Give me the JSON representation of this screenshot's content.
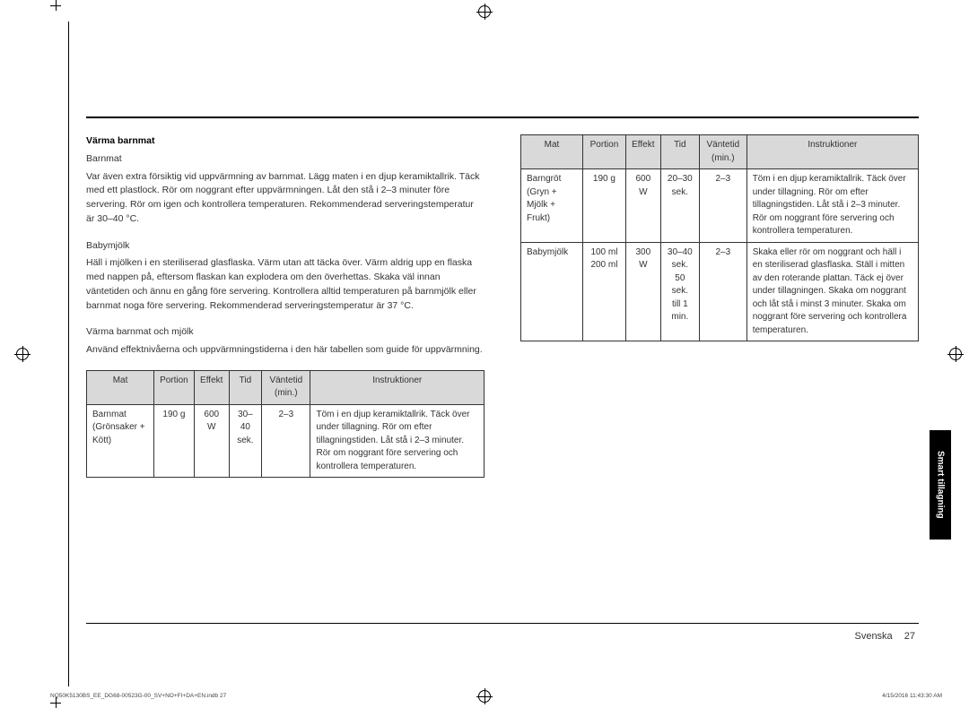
{
  "left": {
    "h_main": "Värma barnmat",
    "sub1": "Barnmat",
    "p1": "Var även extra försiktig vid uppvärmning av barnmat. Lägg maten i en djup keramiktallrik. Täck med ett plastlock. Rör om noggrant efter uppvärmningen. Låt den stå i 2–3 minuter före servering. Rör om igen och kontrollera temperaturen. Rekommenderad serveringstemperatur är 30–40 °C.",
    "sub2": "Babymjölk",
    "p2": "Häll i mjölken i en steriliserad glasflaska. Värm utan att täcka över. Värm aldrig upp en flaska med nappen på, eftersom flaskan kan explodera om den överhettas. Skaka väl innan väntetiden och ännu en gång före servering. Kontrollera alltid temperaturen på barnmjölk eller barnmat noga före servering. Rekommenderad serveringstemperatur är 37 °C.",
    "sub3": "Värma barnmat och mjölk",
    "p3": "Använd effektnivåerna och uppvärmningstiderna i den här tabellen som guide för uppvärmning.",
    "th": {
      "c1": "Mat",
      "c2": "Portion",
      "c3": "Effekt",
      "c4": "Tid",
      "c5": "Väntetid (min.)",
      "c6": "Instruktioner"
    },
    "row": {
      "c1": "Barnmat (Grönsaker + Kött)",
      "c2": "190 g",
      "c3": "600 W",
      "c4": "30–40 sek.",
      "c5": "2–3",
      "c6": "Töm i en djup keramiktallrik. Täck över under tillagning. Rör om efter tillagningstiden. Låt stå i 2–3 minuter. Rör om noggrant före servering och kontrollera temperaturen."
    }
  },
  "right": {
    "th": {
      "c1": "Mat",
      "c2": "Portion",
      "c3": "Effekt",
      "c4": "Tid",
      "c5": "Väntetid (min.)",
      "c6": "Instruktioner"
    },
    "r1": {
      "c1": "Barngröt (Gryn + Mjölk + Frukt)",
      "c2": "190 g",
      "c3": "600 W",
      "c4": "20–30 sek.",
      "c5": "2–3",
      "c6": "Töm i en djup keramiktallrik. Täck över under tillagning. Rör om efter tillagningstiden. Låt stå i 2–3 minuter. Rör om noggrant före servering och kontrollera temperaturen."
    },
    "r2": {
      "c1": "Babymjölk",
      "c2": "100 ml 200 ml",
      "c3": "300 W",
      "c4": "30–40 sek. 50 sek. till 1 min.",
      "c5": "2–3",
      "c6": "Skaka eller rör om noggrant och häll i en steriliserad glasflaska. Ställ i mitten av den roterande plattan. Täck ej över under tillagningen. Skaka om noggrant och låt stå i minst 3 minuter. Skaka om noggrant före servering och kontrollera temperaturen."
    }
  },
  "sidetab": "Smart tillagning",
  "footer_lang": "Svenska",
  "footer_page": "27",
  "slug_left": "NQ50K5130BS_EE_DG68-00523G-00_SV+NO+FI+DA+EN.indb   27",
  "slug_right": "4/15/2016   11:43:30 AM"
}
